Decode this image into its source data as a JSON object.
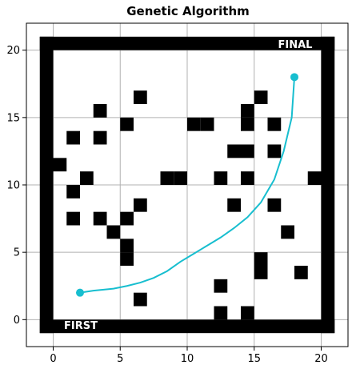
{
  "chart_data": {
    "type": "line",
    "title": "Genetic Algorithm",
    "xlabel": "",
    "ylabel": "",
    "xlim": [
      -2,
      22
    ],
    "ylim": [
      -2,
      22
    ],
    "xticks": [
      0,
      5,
      10,
      15,
      20
    ],
    "yticks": [
      0,
      5,
      10,
      15,
      20
    ],
    "grid": true,
    "colors": {
      "path": "#17becf",
      "walls": "#000000",
      "wall_text": "#ffffff",
      "grid": "#b0b0b0"
    },
    "wall_labels": {
      "top": "FINAL",
      "bottom": "FIRST"
    },
    "border": {
      "xmin": -1,
      "xmax": 21,
      "ymin": -1,
      "ymax": 21
    },
    "obstacles": [
      [
        0.5,
        11.5
      ],
      [
        1.5,
        13.5
      ],
      [
        1.5,
        9.5
      ],
      [
        1.5,
        7.5
      ],
      [
        2.5,
        10.5
      ],
      [
        3.5,
        15.5
      ],
      [
        3.5,
        13.5
      ],
      [
        3.5,
        7.5
      ],
      [
        4.5,
        6.5
      ],
      [
        5.5,
        14.5
      ],
      [
        5.5,
        7.5
      ],
      [
        5.5,
        5.5
      ],
      [
        5.5,
        4.5
      ],
      [
        6.5,
        16.5
      ],
      [
        6.5,
        8.5
      ],
      [
        6.5,
        1.5
      ],
      [
        8.5,
        10.5
      ],
      [
        9.5,
        10.5
      ],
      [
        10.5,
        14.5
      ],
      [
        11.5,
        14.5
      ],
      [
        12.5,
        10.5
      ],
      [
        12.5,
        2.5
      ],
      [
        12.5,
        0.5
      ],
      [
        13.5,
        12.5
      ],
      [
        13.5,
        8.5
      ],
      [
        14.5,
        15.5
      ],
      [
        14.5,
        14.5
      ],
      [
        14.5,
        12.5
      ],
      [
        14.5,
        10.5
      ],
      [
        14.5,
        0.5
      ],
      [
        15.5,
        16.5
      ],
      [
        15.5,
        4.5
      ],
      [
        15.5,
        3.5
      ],
      [
        16.5,
        14.5
      ],
      [
        16.5,
        12.5
      ],
      [
        16.5,
        8.5
      ],
      [
        17.5,
        6.5
      ],
      [
        18.5,
        3.5
      ],
      [
        19.5,
        10.5
      ]
    ],
    "series": [
      {
        "x": [
          2,
          3,
          4.5,
          5.5,
          6.5,
          7.5,
          8.5,
          9.5,
          10.5,
          11.5,
          12.5,
          13.5,
          14.5,
          15.5,
          16.5,
          17.2,
          17.8,
          18
        ],
        "y": [
          2,
          2.15,
          2.3,
          2.5,
          2.75,
          3.1,
          3.6,
          4.3,
          4.9,
          5.5,
          6.1,
          6.8,
          7.6,
          8.7,
          10.4,
          12.5,
          15,
          18
        ]
      }
    ]
  }
}
